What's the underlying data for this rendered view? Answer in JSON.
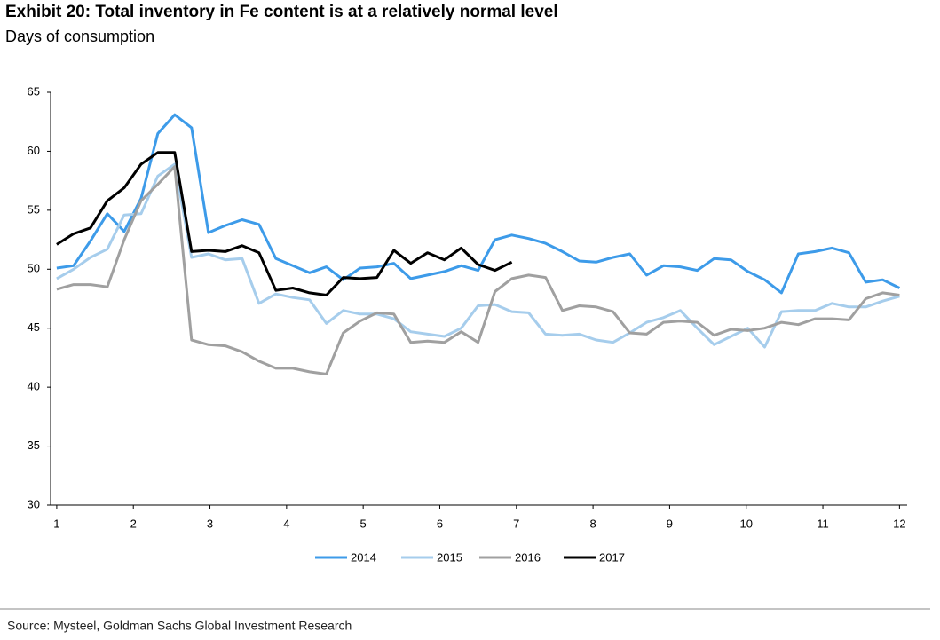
{
  "chart_data": {
    "type": "line",
    "title": "Exhibit 20: Total inventory in Fe content is at a relatively normal level",
    "subtitle": "Days of consumption",
    "source": "Source: Mysteel, Goldman Sachs Global Investment Research",
    "x": [
      1,
      1.22,
      1.44,
      1.66,
      1.88,
      2.1,
      2.32,
      2.54,
      2.76,
      2.98,
      3.2,
      3.42,
      3.64,
      3.86,
      4.08,
      4.3,
      4.52,
      4.74,
      4.96,
      5.18,
      5.4,
      5.62,
      5.84,
      6.06,
      6.28,
      6.5,
      6.72,
      6.94,
      7.16,
      7.38,
      7.6,
      7.82,
      8.04,
      8.26,
      8.48,
      8.7,
      8.92,
      9.14,
      9.36,
      9.58,
      9.8,
      10.02,
      10.24,
      10.46,
      10.68,
      10.9,
      11.12,
      11.34,
      11.56,
      11.78,
      12
    ],
    "series": [
      {
        "name": "2014",
        "color": "#3d9be9",
        "values": [
          50.1,
          50.3,
          52.4,
          54.7,
          53.2,
          56,
          61.5,
          63.1,
          62,
          53.1,
          53.7,
          54.2,
          53.8,
          50.9,
          50.3,
          49.7,
          50.2,
          49.1,
          50.1,
          50.2,
          50.5,
          49.2,
          49.5,
          49.8,
          50.3,
          49.9,
          52.5,
          52.9,
          52.6,
          52.2,
          51.5,
          50.7,
          50.6,
          51.0,
          51.3,
          49.5,
          50.3,
          50.2,
          49.9,
          50.9,
          50.8,
          49.8,
          49.1,
          48.0,
          51.3,
          51.5,
          51.8,
          51.4,
          48.9,
          49.1,
          48.4
        ]
      },
      {
        "name": "2015",
        "color": "#a6cdec",
        "values": [
          49.2,
          50.0,
          51.0,
          51.7,
          54.6,
          54.7,
          57.9,
          58.9,
          51.0,
          51.3,
          50.8,
          50.9,
          47.1,
          47.9,
          47.6,
          47.4,
          45.4,
          46.5,
          46.2,
          46.2,
          45.8,
          44.7,
          44.5,
          44.3,
          45.0,
          46.9,
          47.0,
          46.4,
          46.3,
          44.5,
          44.4,
          44.5,
          44.0,
          43.8,
          44.6,
          45.5,
          45.9,
          46.5,
          45.0,
          43.6,
          44.3,
          45.0,
          43.4,
          46.4,
          46.5,
          46.5,
          47.1,
          46.8,
          46.8,
          47.3,
          47.7
        ]
      },
      {
        "name": "2016",
        "color": "#a0a0a0",
        "values": [
          48.3,
          48.7,
          48.7,
          48.5,
          52.5,
          55.8,
          57.2,
          58.7,
          44.0,
          43.6,
          43.5,
          43.0,
          42.2,
          41.6,
          41.6,
          41.3,
          41.1,
          44.6,
          45.6,
          46.3,
          46.2,
          43.8,
          43.9,
          43.8,
          44.7,
          43.8,
          48.1,
          49.2,
          49.5,
          49.3,
          46.5,
          46.9,
          46.8,
          46.4,
          44.6,
          44.5,
          45.5,
          45.6,
          45.5,
          44.4,
          44.9,
          44.8,
          45.0,
          45.5,
          45.3,
          45.8,
          45.8,
          45.7,
          47.5,
          48.0,
          47.8
        ]
      },
      {
        "name": "2017",
        "color": "#000000",
        "values": [
          52.1,
          53.0,
          53.5,
          55.8,
          56.9,
          58.9,
          59.9,
          59.9,
          51.5,
          51.6,
          51.5,
          52.0,
          51.4,
          48.2,
          48.4,
          48.0,
          47.8,
          49.3,
          49.2,
          49.3,
          51.6,
          50.5,
          51.4,
          50.8,
          51.8,
          50.4,
          49.9,
          50.6,
          null,
          null,
          null,
          null,
          null,
          null,
          null,
          null,
          null,
          null,
          null,
          null,
          null,
          null,
          null,
          null,
          null,
          null,
          null,
          null,
          null,
          null,
          null
        ]
      }
    ],
    "xlim": [
      0.92,
      12.1
    ],
    "xticks": [
      1,
      2,
      3,
      4,
      5,
      6,
      7,
      8,
      9,
      10,
      11,
      12
    ],
    "ylim": [
      30,
      65
    ],
    "yticks": [
      30,
      35,
      40,
      45,
      50,
      55,
      60,
      65
    ],
    "grid": false,
    "legend": "bottom"
  }
}
